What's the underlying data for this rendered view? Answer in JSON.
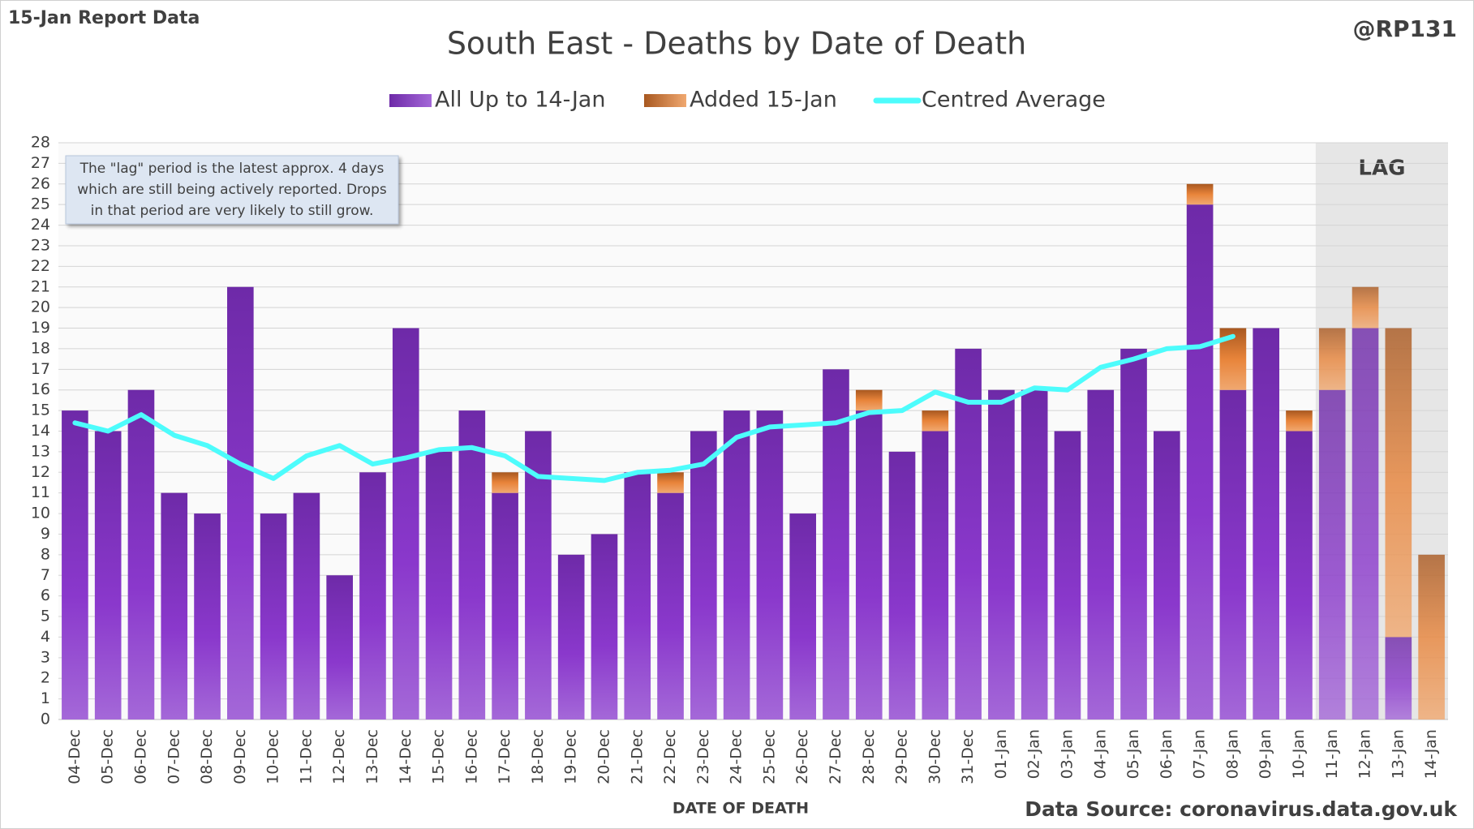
{
  "corner_left": "15-Jan Report Data",
  "corner_right": "@RP131",
  "source": "Data Source: coronavirus.data.gov.uk",
  "annotation": [
    "The \"lag\" period is the latest approx. 4 days",
    "which are still being actively reported.  Drops",
    "in that period are very likely to still grow."
  ],
  "chart_data": {
    "type": "bar",
    "stacked": true,
    "title": "South East - Deaths by Date of Death",
    "xlabel": "DATE OF DEATH",
    "categories": [
      "04-Dec",
      "05-Dec",
      "06-Dec",
      "07-Dec",
      "08-Dec",
      "09-Dec",
      "10-Dec",
      "11-Dec",
      "12-Dec",
      "13-Dec",
      "14-Dec",
      "15-Dec",
      "16-Dec",
      "17-Dec",
      "18-Dec",
      "19-Dec",
      "20-Dec",
      "21-Dec",
      "22-Dec",
      "23-Dec",
      "24-Dec",
      "25-Dec",
      "26-Dec",
      "27-Dec",
      "28-Dec",
      "29-Dec",
      "30-Dec",
      "31-Dec",
      "01-Jan",
      "02-Jan",
      "03-Jan",
      "04-Jan",
      "05-Jan",
      "06-Jan",
      "07-Jan",
      "08-Jan",
      "09-Jan",
      "10-Jan",
      "11-Jan",
      "12-Jan",
      "13-Jan",
      "14-Jan"
    ],
    "series": [
      {
        "name": "All Up to 14-Jan",
        "color": "#7a30b8",
        "values": [
          15,
          14,
          16,
          11,
          10,
          21,
          10,
          11,
          7,
          12,
          19,
          13,
          15,
          11,
          14,
          8,
          9,
          12,
          11,
          14,
          15,
          15,
          10,
          17,
          15,
          13,
          14,
          18,
          16,
          16,
          14,
          16,
          18,
          14,
          25,
          16,
          19,
          14,
          16,
          19,
          4,
          0
        ]
      },
      {
        "name": "Added 15-Jan",
        "color": "#e07a2c",
        "values": [
          0,
          0,
          0,
          0,
          0,
          0,
          0,
          0,
          0,
          0,
          0,
          0,
          0,
          1,
          0,
          0,
          0,
          0,
          1,
          0,
          0,
          0,
          0,
          0,
          1,
          0,
          1,
          0,
          0,
          0,
          0,
          0,
          0,
          0,
          1,
          3,
          0,
          1,
          3,
          2,
          15,
          8
        ]
      },
      {
        "name": "Centred Average",
        "type": "line",
        "color": "#4dfcfc",
        "values": [
          14.4,
          14.0,
          14.8,
          13.8,
          13.3,
          12.4,
          11.7,
          12.8,
          13.3,
          12.4,
          12.7,
          13.1,
          13.2,
          12.8,
          11.8,
          11.7,
          11.6,
          12.0,
          12.1,
          12.4,
          13.7,
          14.2,
          14.3,
          14.4,
          14.9,
          15.0,
          15.9,
          15.4,
          15.4,
          16.1,
          16.0,
          17.1,
          17.5,
          18.0,
          18.1,
          18.6,
          null,
          null,
          null,
          null,
          null,
          null
        ]
      }
    ],
    "ylim": [
      0,
      28
    ],
    "yticks": [
      0,
      1,
      2,
      3,
      4,
      5,
      6,
      7,
      8,
      9,
      10,
      11,
      12,
      13,
      14,
      15,
      16,
      17,
      18,
      19,
      20,
      21,
      22,
      23,
      24,
      25,
      26,
      27,
      28
    ],
    "grid": true,
    "lag": {
      "label": "LAG",
      "from": "11-Jan"
    }
  }
}
